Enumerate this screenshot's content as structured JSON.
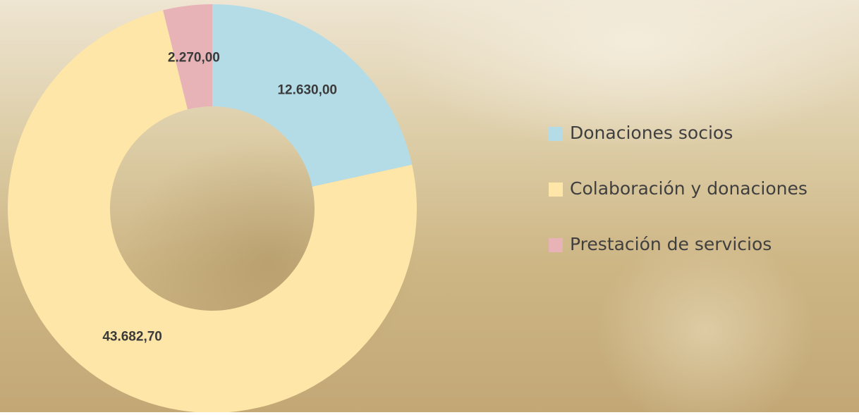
{
  "chart_data": {
    "type": "pie",
    "categories": [
      "Donaciones socios",
      "Colaboración y donaciones",
      "Prestación de servicios"
    ],
    "values": [
      12630,
      43682.7,
      2270
    ],
    "value_labels": [
      "12.630,00",
      "43.682,70",
      "2.270,00"
    ],
    "colors": [
      "#b4dce7",
      "#fde6a8",
      "#e8b3b7"
    ],
    "legend": "right"
  }
}
